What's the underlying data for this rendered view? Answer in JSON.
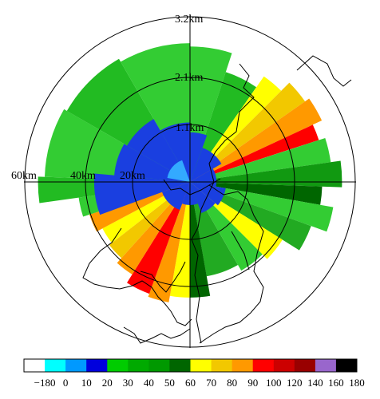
{
  "ring_labels": {
    "outer": "3.2km",
    "second": "2.1km",
    "third": "1.1km",
    "left_outer": "60km",
    "left_middle": "40km",
    "left_inner": "20km"
  },
  "colorbar": {
    "tick_labels": [
      "−180",
      "0",
      "10",
      "20",
      "30",
      "40",
      "50",
      "60",
      "70",
      "80",
      "90",
      "100",
      "120",
      "140",
      "160",
      "180"
    ],
    "colors": [
      "#ffffff",
      "#00ffff",
      "#0099ff",
      "#0000dd",
      "#00cc00",
      "#00aa00",
      "#009900",
      "#006600",
      "#ffff00",
      "#f2c800",
      "#ff9900",
      "#ff0000",
      "#cc0000",
      "#990000",
      "#9966cc",
      "#000000"
    ]
  },
  "sectors": [
    {
      "a0": 0,
      "a1": 18,
      "r": 0.82,
      "color": "#33cc33"
    },
    {
      "a0": 18,
      "a1": 35,
      "r": 0.7,
      "color": "#22bb22"
    },
    {
      "a0": 35,
      "a1": 45,
      "r": 0.78,
      "color": "#ffff00"
    },
    {
      "a0": 45,
      "a1": 55,
      "r": 0.85,
      "color": "#f2c800"
    },
    {
      "a0": 55,
      "a1": 65,
      "r": 0.88,
      "color": "#ff9900"
    },
    {
      "a0": 65,
      "a1": 72,
      "r": 0.82,
      "color": "#ff0000"
    },
    {
      "a0": 72,
      "a1": 82,
      "r": 0.86,
      "color": "#33cc33"
    },
    {
      "a0": 82,
      "a1": 92,
      "r": 0.92,
      "color": "#119911"
    },
    {
      "a0": 92,
      "a1": 100,
      "r": 0.8,
      "color": "#006600"
    },
    {
      "a0": 100,
      "a1": 110,
      "r": 0.88,
      "color": "#33cc33"
    },
    {
      "a0": 110,
      "a1": 122,
      "r": 0.78,
      "color": "#22aa22"
    },
    {
      "a0": 122,
      "a1": 135,
      "r": 0.66,
      "color": "#ffff00"
    },
    {
      "a0": 135,
      "a1": 150,
      "r": 0.62,
      "color": "#33cc33"
    },
    {
      "a0": 150,
      "a1": 170,
      "r": 0.58,
      "color": "#22aa22"
    },
    {
      "a0": 170,
      "a1": 180,
      "r": 0.7,
      "color": "#006600"
    },
    {
      "a0": 180,
      "a1": 190,
      "r": 0.7,
      "color": "#ffff00"
    },
    {
      "a0": 190,
      "a1": 200,
      "r": 0.74,
      "color": "#ff9900"
    },
    {
      "a0": 200,
      "a1": 212,
      "r": 0.72,
      "color": "#ff0000"
    },
    {
      "a0": 212,
      "a1": 222,
      "r": 0.66,
      "color": "#ff9900"
    },
    {
      "a0": 222,
      "a1": 232,
      "r": 0.62,
      "color": "#f2c800"
    },
    {
      "a0": 232,
      "a1": 242,
      "r": 0.6,
      "color": "#ffff00"
    },
    {
      "a0": 242,
      "a1": 252,
      "r": 0.64,
      "color": "#ff9900"
    },
    {
      "a0": 252,
      "a1": 262,
      "r": 0.68,
      "color": "#33cc33"
    },
    {
      "a0": 262,
      "a1": 272,
      "r": 0.92,
      "color": "#22bb22"
    },
    {
      "a0": 272,
      "a1": 300,
      "r": 0.88,
      "color": "#33cc33"
    },
    {
      "a0": 300,
      "a1": 330,
      "r": 0.86,
      "color": "#22bb22"
    },
    {
      "a0": 330,
      "a1": 360,
      "r": 0.84,
      "color": "#33cc33"
    }
  ],
  "blue_core": [
    {
      "a0": 0,
      "a1": 20,
      "r": 0.3
    },
    {
      "a0": 20,
      "a1": 60,
      "r": 0.22
    },
    {
      "a0": 60,
      "a1": 100,
      "r": 0.16
    },
    {
      "a0": 100,
      "a1": 130,
      "r": 0.22
    },
    {
      "a0": 130,
      "a1": 160,
      "r": 0.2
    },
    {
      "a0": 160,
      "a1": 200,
      "r": 0.14
    },
    {
      "a0": 200,
      "a1": 250,
      "r": 0.18
    },
    {
      "a0": 250,
      "a1": 275,
      "r": 0.58
    },
    {
      "a0": 275,
      "a1": 300,
      "r": 0.46
    },
    {
      "a0": 300,
      "a1": 330,
      "r": 0.44
    },
    {
      "a0": 330,
      "a1": 360,
      "r": 0.36
    }
  ],
  "cyan_core": [
    {
      "a0": 0,
      "a1": 360,
      "r": 0.08
    },
    {
      "a0": 280,
      "a1": 340,
      "r": 0.14
    }
  ]
}
